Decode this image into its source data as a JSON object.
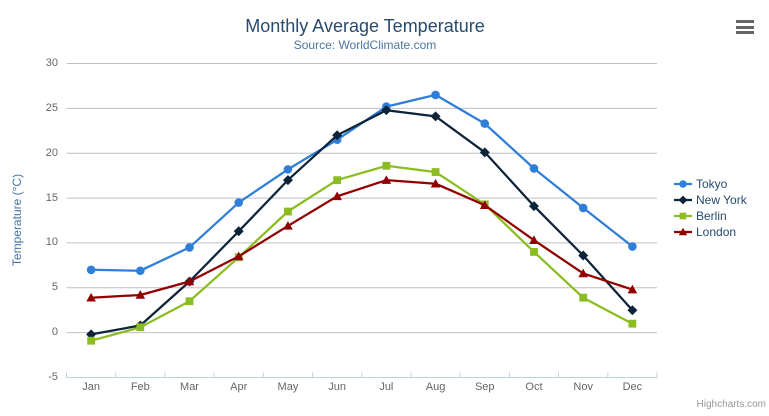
{
  "chart": {
    "title": "Monthly Average Temperature",
    "subtitle": "Source: WorldClimate.com",
    "y_axis_title": "Temperature (°C)",
    "credits": "Highcharts.com"
  },
  "icons": {
    "context_menu": "hamburger-icon"
  },
  "colors": {
    "title": "#274b6d",
    "subtitle": "#4d759e",
    "axis_title": "#4572a7",
    "tick_label": "#666666",
    "gridline": "#c0c0c0",
    "axis_line": "#c0d0e0",
    "legend_text": "#274b6d",
    "burger": "#666666",
    "credits": "#999999"
  },
  "chart_data": {
    "type": "line",
    "title": "Monthly Average Temperature",
    "subtitle": "Source: WorldClimate.com",
    "ylabel": "Temperature (°C)",
    "xlabel": "",
    "ylim": [
      -5,
      30
    ],
    "y_ticks": [
      -5,
      0,
      5,
      10,
      15,
      20,
      25,
      30
    ],
    "grid": true,
    "legend_position": "right",
    "categories": [
      "Jan",
      "Feb",
      "Mar",
      "Apr",
      "May",
      "Jun",
      "Jul",
      "Aug",
      "Sep",
      "Oct",
      "Nov",
      "Dec"
    ],
    "series": [
      {
        "name": "Tokyo",
        "color": "#2f7ed8",
        "marker": "circle",
        "values": [
          7.0,
          6.9,
          9.5,
          14.5,
          18.2,
          21.5,
          25.2,
          26.5,
          23.3,
          18.3,
          13.9,
          9.6
        ]
      },
      {
        "name": "New York",
        "color": "#0d233a",
        "marker": "diamond",
        "values": [
          -0.2,
          0.8,
          5.7,
          11.3,
          17.0,
          22.0,
          24.8,
          24.1,
          20.1,
          14.1,
          8.6,
          2.5
        ]
      },
      {
        "name": "Berlin",
        "color": "#8bbc21",
        "marker": "square",
        "values": [
          -0.9,
          0.6,
          3.5,
          8.4,
          13.5,
          17.0,
          18.6,
          17.9,
          14.3,
          9.0,
          3.9,
          1.0
        ]
      },
      {
        "name": "London",
        "color": "#910000",
        "marker": "triangle",
        "values": [
          3.9,
          4.2,
          5.7,
          8.5,
          11.9,
          15.2,
          17.0,
          16.6,
          14.2,
          10.3,
          6.6,
          4.8
        ]
      }
    ]
  }
}
